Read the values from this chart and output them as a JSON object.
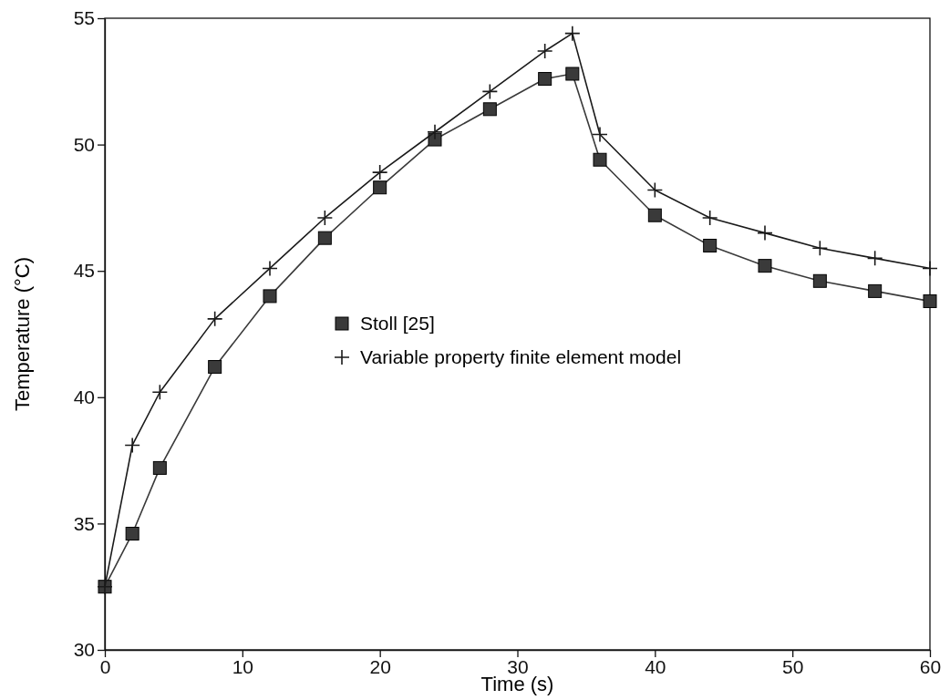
{
  "chart_data": {
    "type": "line",
    "xlabel": "Time (s)",
    "ylabel": "Temperature (°C)",
    "xlim": [
      0,
      60
    ],
    "xticks": [
      0,
      10,
      20,
      30,
      40,
      50,
      60
    ],
    "ylim": [
      30,
      55
    ],
    "yticks": [
      30,
      35,
      40,
      45,
      50,
      55
    ],
    "grid": false,
    "legend": "center",
    "series": [
      {
        "name": "Stoll [25]",
        "color": "#3a3a3a",
        "marker": "square",
        "x": [
          0,
          2,
          4,
          8,
          12,
          16,
          20,
          24,
          28,
          32,
          34,
          36,
          40,
          44,
          48,
          52,
          56,
          60
        ],
        "values": [
          32.5,
          34.6,
          37.2,
          41.2,
          44.0,
          46.3,
          48.3,
          50.2,
          51.4,
          52.6,
          52.8,
          49.4,
          47.2,
          46.0,
          45.2,
          44.6,
          44.2,
          43.8
        ]
      },
      {
        "name": "Variable property finite element model",
        "color": "#1a1a1a",
        "marker": "cross",
        "x": [
          0,
          2,
          4,
          8,
          12,
          16,
          20,
          24,
          28,
          32,
          34,
          36,
          40,
          44,
          48,
          52,
          56,
          60
        ],
        "values": [
          32.5,
          38.1,
          40.2,
          43.1,
          45.1,
          47.1,
          48.9,
          50.5,
          52.1,
          53.7,
          54.4,
          50.4,
          48.2,
          47.1,
          46.5,
          45.9,
          45.5,
          45.1
        ]
      }
    ]
  }
}
